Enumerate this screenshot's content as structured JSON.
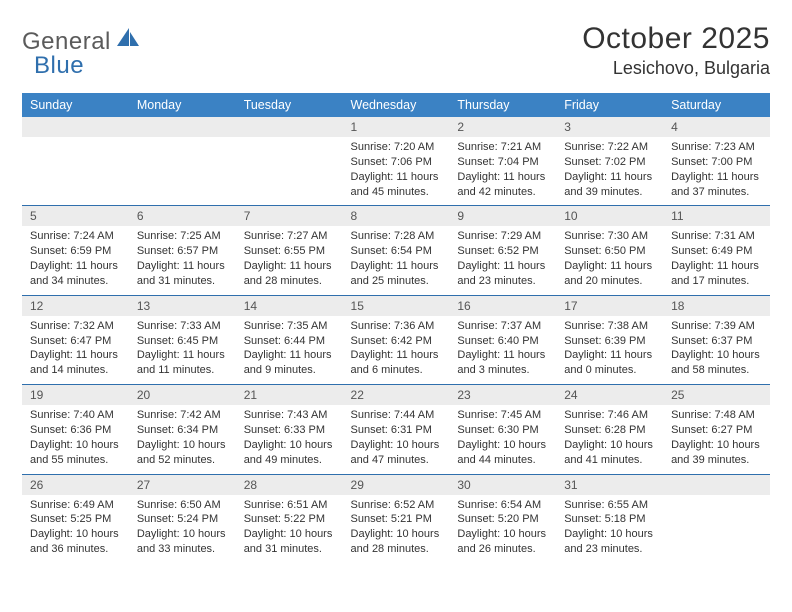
{
  "brand": {
    "part1": "General",
    "part2": "Blue"
  },
  "title": "October 2025",
  "location": "Lesichovo, Bulgaria",
  "colors": {
    "header_bg": "#3b82c4",
    "header_text": "#ffffff",
    "numrow_bg": "#ececec",
    "numrow_text": "#555555",
    "border": "#2f6fad",
    "body_text": "#333333",
    "logo_gray": "#5b5b5b",
    "logo_blue": "#2f6fad",
    "page_bg": "#ffffff"
  },
  "typography": {
    "title_fontsize": 30,
    "location_fontsize": 18,
    "header_fontsize": 12.5,
    "daynum_fontsize": 12,
    "detail_fontsize": 11
  },
  "weekdays": [
    "Sunday",
    "Monday",
    "Tuesday",
    "Wednesday",
    "Thursday",
    "Friday",
    "Saturday"
  ],
  "weeks": [
    [
      null,
      null,
      null,
      {
        "n": "1",
        "sunrise": "7:20 AM",
        "sunset": "7:06 PM",
        "dh": "11",
        "dm": "45"
      },
      {
        "n": "2",
        "sunrise": "7:21 AM",
        "sunset": "7:04 PM",
        "dh": "11",
        "dm": "42"
      },
      {
        "n": "3",
        "sunrise": "7:22 AM",
        "sunset": "7:02 PM",
        "dh": "11",
        "dm": "39"
      },
      {
        "n": "4",
        "sunrise": "7:23 AM",
        "sunset": "7:00 PM",
        "dh": "11",
        "dm": "37"
      }
    ],
    [
      {
        "n": "5",
        "sunrise": "7:24 AM",
        "sunset": "6:59 PM",
        "dh": "11",
        "dm": "34"
      },
      {
        "n": "6",
        "sunrise": "7:25 AM",
        "sunset": "6:57 PM",
        "dh": "11",
        "dm": "31"
      },
      {
        "n": "7",
        "sunrise": "7:27 AM",
        "sunset": "6:55 PM",
        "dh": "11",
        "dm": "28"
      },
      {
        "n": "8",
        "sunrise": "7:28 AM",
        "sunset": "6:54 PM",
        "dh": "11",
        "dm": "25"
      },
      {
        "n": "9",
        "sunrise": "7:29 AM",
        "sunset": "6:52 PM",
        "dh": "11",
        "dm": "23"
      },
      {
        "n": "10",
        "sunrise": "7:30 AM",
        "sunset": "6:50 PM",
        "dh": "11",
        "dm": "20"
      },
      {
        "n": "11",
        "sunrise": "7:31 AM",
        "sunset": "6:49 PM",
        "dh": "11",
        "dm": "17"
      }
    ],
    [
      {
        "n": "12",
        "sunrise": "7:32 AM",
        "sunset": "6:47 PM",
        "dh": "11",
        "dm": "14"
      },
      {
        "n": "13",
        "sunrise": "7:33 AM",
        "sunset": "6:45 PM",
        "dh": "11",
        "dm": "11"
      },
      {
        "n": "14",
        "sunrise": "7:35 AM",
        "sunset": "6:44 PM",
        "dh": "11",
        "dm": "9"
      },
      {
        "n": "15",
        "sunrise": "7:36 AM",
        "sunset": "6:42 PM",
        "dh": "11",
        "dm": "6"
      },
      {
        "n": "16",
        "sunrise": "7:37 AM",
        "sunset": "6:40 PM",
        "dh": "11",
        "dm": "3"
      },
      {
        "n": "17",
        "sunrise": "7:38 AM",
        "sunset": "6:39 PM",
        "dh": "11",
        "dm": "0"
      },
      {
        "n": "18",
        "sunrise": "7:39 AM",
        "sunset": "6:37 PM",
        "dh": "10",
        "dm": "58"
      }
    ],
    [
      {
        "n": "19",
        "sunrise": "7:40 AM",
        "sunset": "6:36 PM",
        "dh": "10",
        "dm": "55"
      },
      {
        "n": "20",
        "sunrise": "7:42 AM",
        "sunset": "6:34 PM",
        "dh": "10",
        "dm": "52"
      },
      {
        "n": "21",
        "sunrise": "7:43 AM",
        "sunset": "6:33 PM",
        "dh": "10",
        "dm": "49"
      },
      {
        "n": "22",
        "sunrise": "7:44 AM",
        "sunset": "6:31 PM",
        "dh": "10",
        "dm": "47"
      },
      {
        "n": "23",
        "sunrise": "7:45 AM",
        "sunset": "6:30 PM",
        "dh": "10",
        "dm": "44"
      },
      {
        "n": "24",
        "sunrise": "7:46 AM",
        "sunset": "6:28 PM",
        "dh": "10",
        "dm": "41"
      },
      {
        "n": "25",
        "sunrise": "7:48 AM",
        "sunset": "6:27 PM",
        "dh": "10",
        "dm": "39"
      }
    ],
    [
      {
        "n": "26",
        "sunrise": "6:49 AM",
        "sunset": "5:25 PM",
        "dh": "10",
        "dm": "36"
      },
      {
        "n": "27",
        "sunrise": "6:50 AM",
        "sunset": "5:24 PM",
        "dh": "10",
        "dm": "33"
      },
      {
        "n": "28",
        "sunrise": "6:51 AM",
        "sunset": "5:22 PM",
        "dh": "10",
        "dm": "31"
      },
      {
        "n": "29",
        "sunrise": "6:52 AM",
        "sunset": "5:21 PM",
        "dh": "10",
        "dm": "28"
      },
      {
        "n": "30",
        "sunrise": "6:54 AM",
        "sunset": "5:20 PM",
        "dh": "10",
        "dm": "26"
      },
      {
        "n": "31",
        "sunrise": "6:55 AM",
        "sunset": "5:18 PM",
        "dh": "10",
        "dm": "23"
      },
      null
    ]
  ],
  "labels": {
    "sunrise": "Sunrise:",
    "sunset": "Sunset:",
    "daylight": "Daylight:",
    "hours": "hours",
    "and": "and",
    "minutes": "minutes."
  }
}
